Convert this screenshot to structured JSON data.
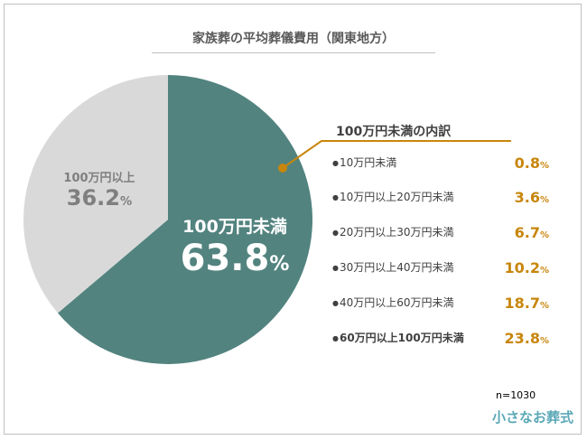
{
  "chart_data": {
    "type": "pie",
    "title": "家族葬の平均葬儀費用（関東地方）",
    "slices": [
      {
        "label": "100万円未満",
        "value": 63.8,
        "display": "63.8",
        "color": "#52837f"
      },
      {
        "label": "100万円以上",
        "value": 36.2,
        "display": "36.2",
        "color": "#d9d9d9"
      }
    ],
    "unit": "%",
    "breakdown": {
      "title": "100万円未満の内訳",
      "accent_color": "#c8860c",
      "items": [
        {
          "label": "10万円未満",
          "value": "0.8"
        },
        {
          "label": "10万円以上20万円未満",
          "value": "3.6"
        },
        {
          "label": "20万円以上30万円未満",
          "value": "6.7"
        },
        {
          "label": "30万円以上40万円未満",
          "value": "10.2"
        },
        {
          "label": "40万円以上60万円未満",
          "value": "18.7"
        },
        {
          "label": "60万円以上100万円未満",
          "value": "23.8"
        }
      ]
    },
    "sample_size": "n=1030"
  },
  "brand": {
    "logo_text": "小さなお葬式"
  }
}
